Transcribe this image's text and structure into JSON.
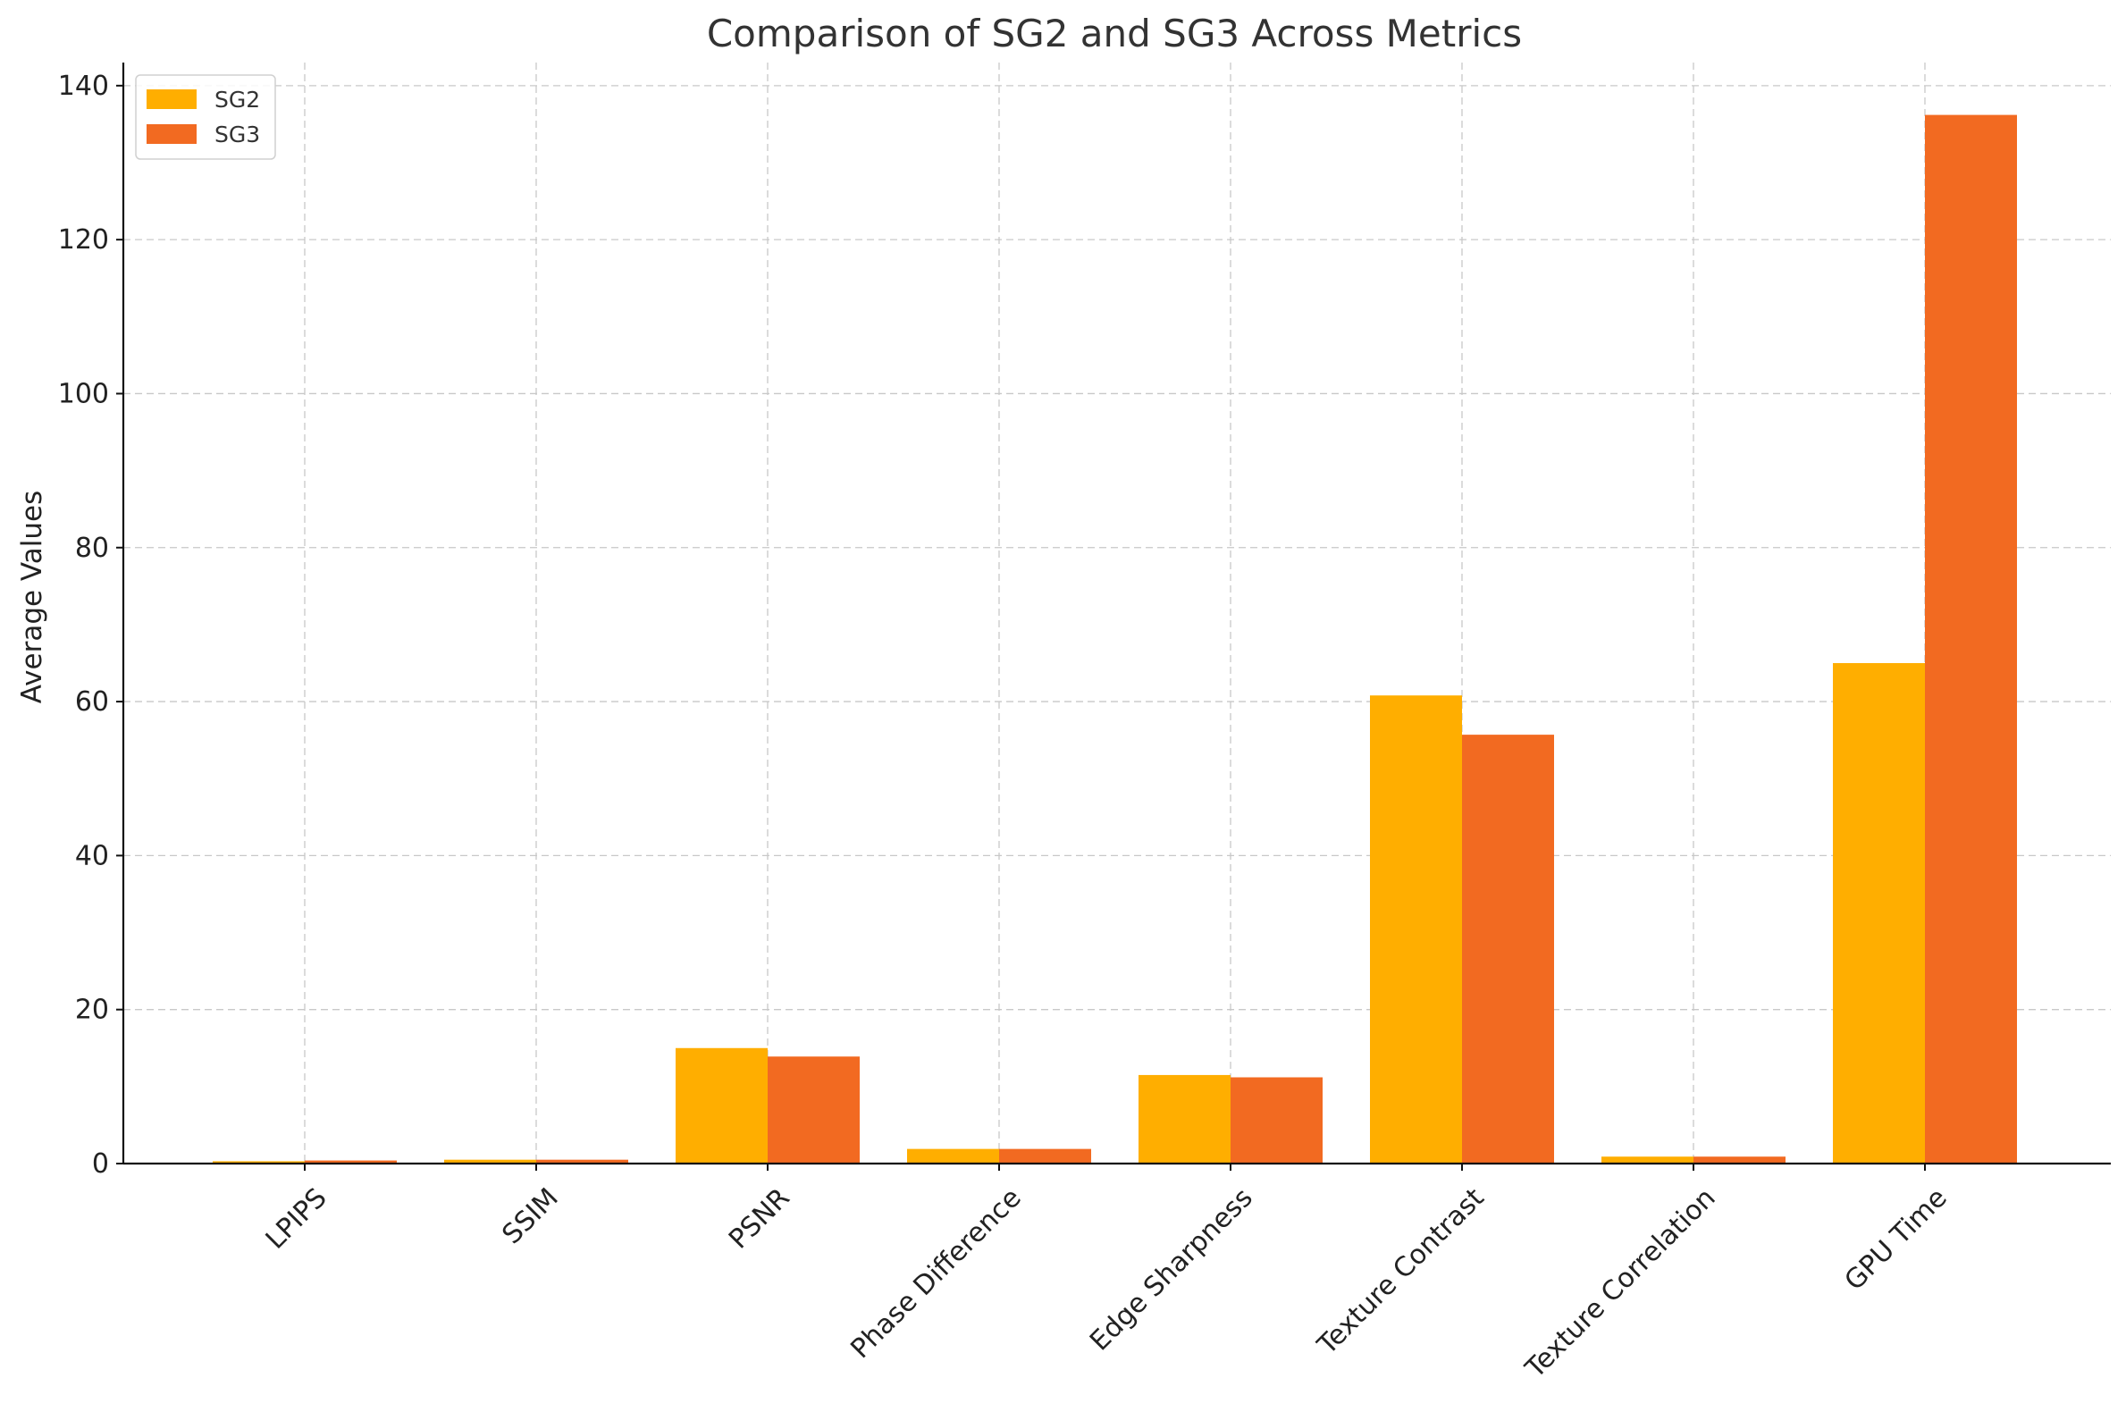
{
  "chart_data": {
    "type": "bar",
    "title": "Comparison of SG2 and SG3 Across Metrics",
    "xlabel": "",
    "ylabel": "Average Values",
    "categories": [
      "LPIPS",
      "SSIM",
      "PSNR",
      "Phase Difference",
      "Edge Sharpness",
      "Texture Contrast",
      "Texture Correlation",
      "GPU Time"
    ],
    "series": [
      {
        "name": "SG2",
        "color": "#FFAE00",
        "values": [
          0.3,
          0.5,
          15.0,
          1.9,
          11.5,
          60.8,
          0.9,
          65.0
        ]
      },
      {
        "name": "SG3",
        "color": "#F26A21",
        "values": [
          0.4,
          0.5,
          13.9,
          1.9,
          11.2,
          55.7,
          0.9,
          136.2
        ]
      }
    ],
    "ylim": [
      0,
      143
    ],
    "yticks": [
      0,
      20,
      40,
      60,
      80,
      100,
      120,
      140
    ],
    "grid": true,
    "legend_position": "top-left"
  }
}
